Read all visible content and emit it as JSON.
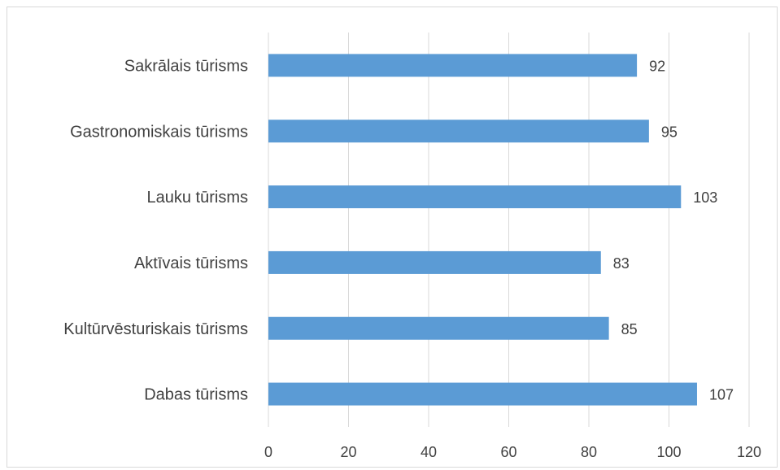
{
  "chart_data": {
    "type": "bar",
    "orientation": "horizontal",
    "categories": [
      "Sakrālais tūrisms",
      "Gastronomiskais tūrisms",
      "Lauku tūrisms",
      "Aktīvais tūrisms",
      "Kultūrvēsturiskais tūrisms",
      "Dabas tūrisms"
    ],
    "values": [
      92,
      95,
      103,
      83,
      85,
      107
    ],
    "xlim": [
      0,
      120
    ],
    "xticks": [
      "0",
      "20",
      "40",
      "60",
      "80",
      "100",
      "120"
    ],
    "grid": "vertical",
    "data_labels": true,
    "bar_color": "#5b9bd5"
  }
}
